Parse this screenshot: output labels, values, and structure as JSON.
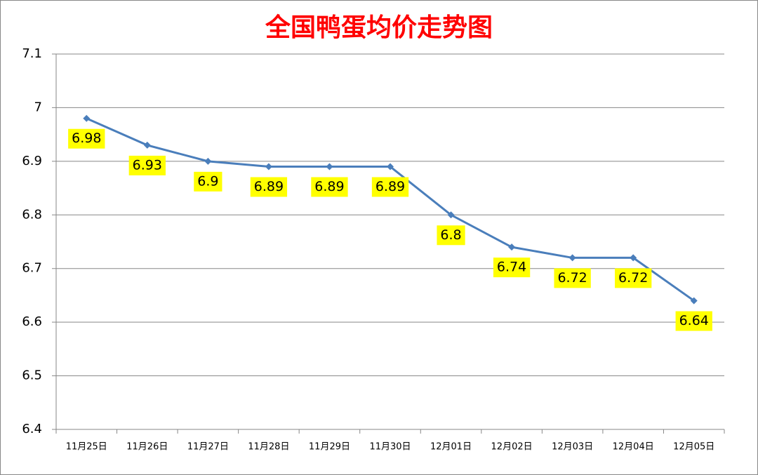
{
  "chart_data": {
    "type": "line",
    "title": "全国鸭蛋均价走势图",
    "categories": [
      "11月25日",
      "11月26日",
      "11月27日",
      "11月28日",
      "11月29日",
      "11月30日",
      "12月01日",
      "12月02日",
      "12月03日",
      "12月04日",
      "12月05日"
    ],
    "values": [
      6.98,
      6.93,
      6.9,
      6.89,
      6.89,
      6.89,
      6.8,
      6.74,
      6.72,
      6.72,
      6.64
    ],
    "color": "#4a7ebb",
    "label_background": "#ffff00",
    "ylim": [
      6.4,
      7.1
    ],
    "yticks": [
      6.4,
      6.5,
      6.6,
      6.7,
      6.8,
      6.9,
      7,
      7.1
    ],
    "grid": true
  }
}
